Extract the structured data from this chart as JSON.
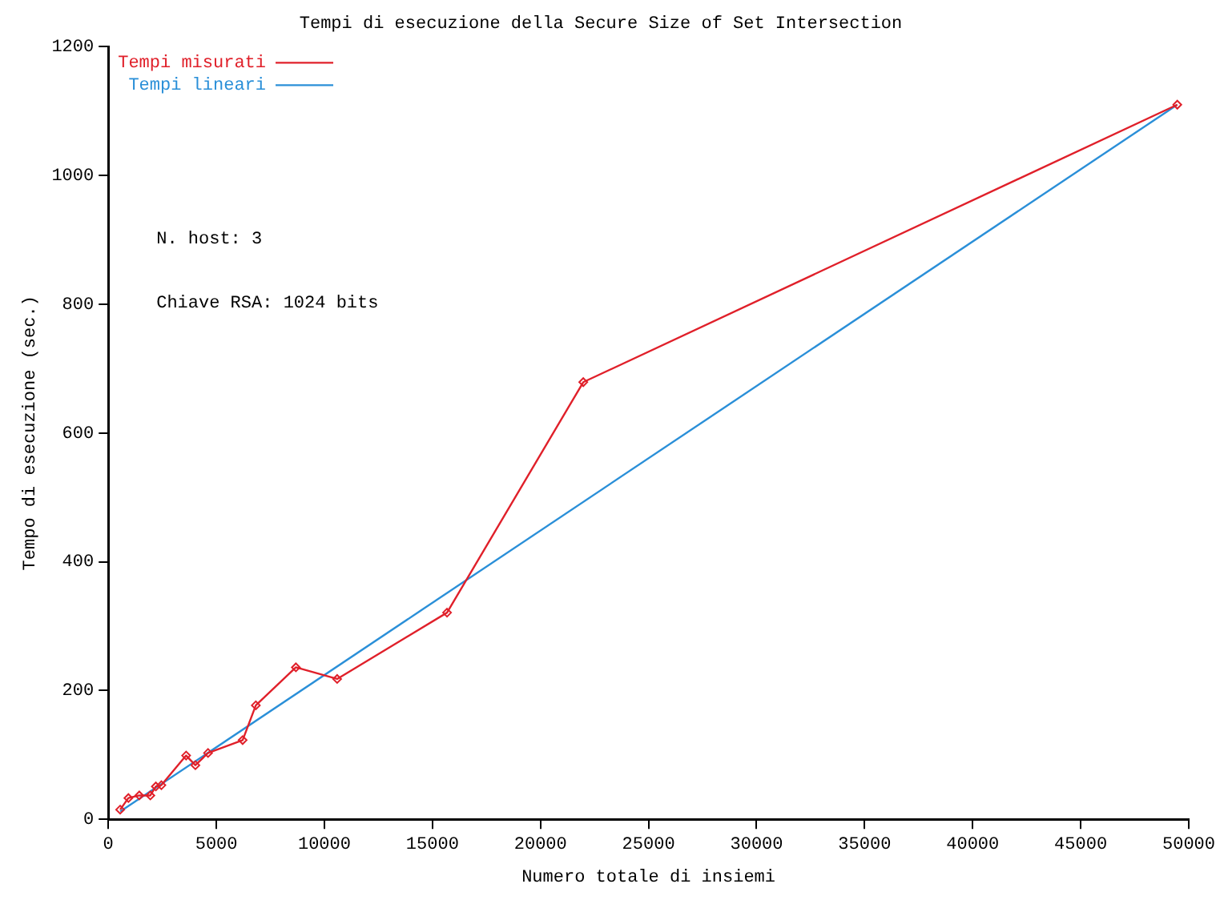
{
  "chart_data": {
    "type": "line",
    "title": "Tempi di esecuzione della Secure Size of Set Intersection",
    "xlabel": "Numero totale di insiemi",
    "ylabel": "Tempo di esecuzione (sec.)",
    "xlim": [
      0,
      50000
    ],
    "xticks": [
      0,
      5000,
      10000,
      15000,
      20000,
      25000,
      30000,
      35000,
      40000,
      45000,
      50000
    ],
    "ylim": [
      0,
      1200
    ],
    "yticks": [
      0,
      200,
      400,
      600,
      800,
      1000,
      1200
    ],
    "grid": false,
    "legend": "top left",
    "annotations": [
      "N. host: 3",
      "Chiave RSA: 1024 bits"
    ],
    "series": [
      {
        "name": "Tempi misurati",
        "color": "#e0202a",
        "marker": "diamond",
        "x": [
          549,
          930,
          1434,
          1945,
          2200,
          2456,
          3600,
          4030,
          4615,
          6217,
          6827,
          8680,
          10590,
          15675,
          21980,
          49470
        ],
        "values": [
          15,
          33,
          37,
          37,
          51,
          53,
          99,
          84,
          103,
          123,
          177,
          236,
          218,
          321,
          679,
          1110
        ]
      },
      {
        "name": "Tempi lineari",
        "color": "#2a8fd8",
        "marker": "none",
        "x": [
          549,
          49470
        ],
        "values": [
          12,
          1110
        ]
      }
    ]
  }
}
